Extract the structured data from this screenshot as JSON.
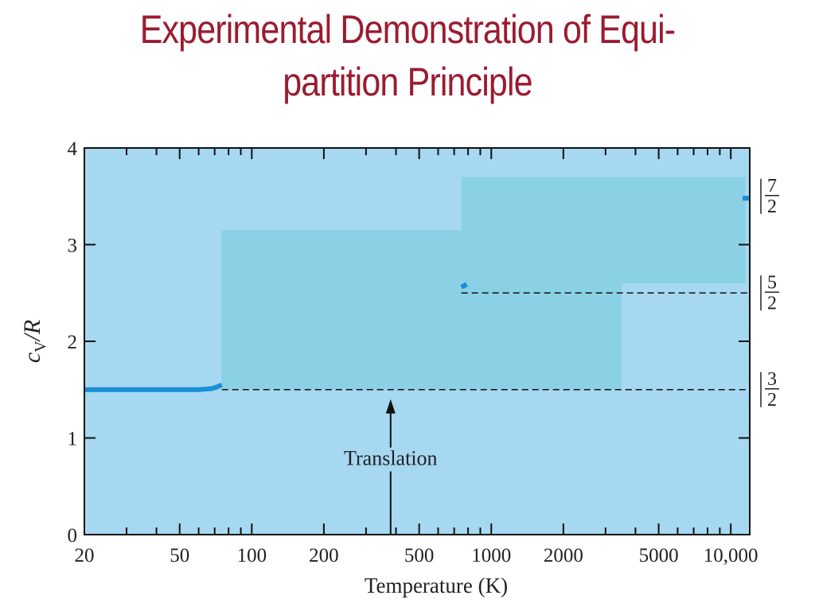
{
  "slide": {
    "title_line1": "Experimental Demonstration of Equi-",
    "title_line2": "partition Principle"
  },
  "colors": {
    "title": "#9b1b30",
    "plot_background": "#a6d8f2",
    "band": "#8ad1e6",
    "data_line": "#1a8fd6"
  },
  "chart_data": {
    "type": "line",
    "title": "",
    "xlabel": "Temperature (K)",
    "ylabel": "cV/R",
    "xscale": "log",
    "xlim": [
      20,
      12000
    ],
    "ylim": [
      0,
      4
    ],
    "x_ticks": [
      {
        "value": 20,
        "label": "20"
      },
      {
        "value": 50,
        "label": "50"
      },
      {
        "value": 100,
        "label": "100"
      },
      {
        "value": 200,
        "label": "200"
      },
      {
        "value": 500,
        "label": "500"
      },
      {
        "value": 1000,
        "label": "1000"
      },
      {
        "value": 2000,
        "label": "2000"
      },
      {
        "value": 5000,
        "label": "5000"
      },
      {
        "value": 10000,
        "label": "10,000"
      }
    ],
    "y_ticks": [
      {
        "value": 0,
        "label": "0"
      },
      {
        "value": 1,
        "label": "1"
      },
      {
        "value": 2,
        "label": "2"
      },
      {
        "value": 3,
        "label": "3"
      },
      {
        "value": 4,
        "label": "4"
      }
    ],
    "right_ticks": [
      {
        "value": 1.5,
        "numerator": "3",
        "denominator": "2"
      },
      {
        "value": 2.5,
        "numerator": "5",
        "denominator": "2"
      },
      {
        "value": 3.5,
        "numerator": "7",
        "denominator": "2"
      }
    ],
    "reference_lines": [
      {
        "y": 1.5,
        "x_from": 75,
        "x_to": 12000
      },
      {
        "y": 2.5,
        "x_from": 750,
        "x_to": 12000
      }
    ],
    "bands": [
      {
        "x_from": 75,
        "x_to": 3500,
        "y_from": 1.5,
        "y_to": 3.15
      },
      {
        "x_from": 750,
        "x_to": 11500,
        "y_from": 2.6,
        "y_to": 3.7
      }
    ],
    "series": [
      {
        "segments": [
          {
            "x": [
              20,
              40,
              60,
              68,
              72,
              75
            ],
            "y": [
              1.5,
              1.5,
              1.5,
              1.51,
              1.53,
              1.55
            ]
          },
          {
            "x": [
              750,
              790
            ],
            "y": [
              2.56,
              2.59
            ]
          },
          {
            "x": [
              11200,
              12000
            ],
            "y": [
              3.48,
              3.48
            ]
          }
        ]
      }
    ],
    "annotations": [
      {
        "text": "Translation",
        "x": 380,
        "y": 1.5,
        "text_y": 0.72
      }
    ],
    "grid": false,
    "legend": "none"
  }
}
